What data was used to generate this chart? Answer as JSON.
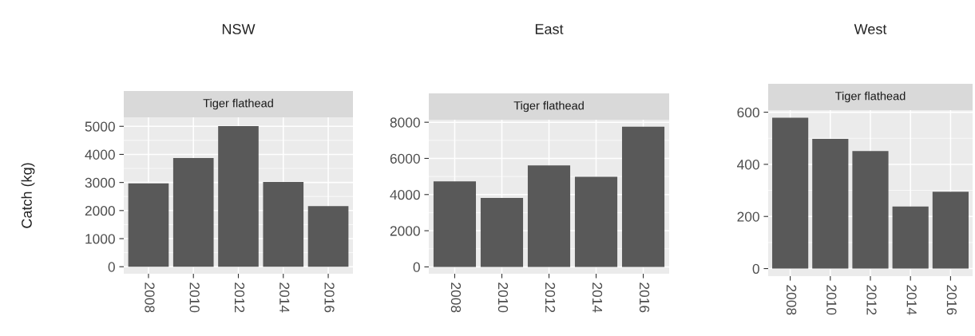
{
  "chart_data": [
    {
      "type": "bar",
      "title": "NSW",
      "subtitle": "Tiger flathead",
      "ylabel": "Catch (kg)",
      "categories": [
        "2008",
        "2010",
        "2012",
        "2014",
        "2016"
      ],
      "values": [
        2970,
        3870,
        5010,
        3020,
        2160
      ],
      "color": "#595959",
      "ylim": [
        -250,
        5320
      ],
      "yticks": [
        0,
        1000,
        2000,
        3000,
        4000,
        5000
      ],
      "grid": true
    },
    {
      "type": "bar",
      "title": "East",
      "subtitle": "Tiger flathead",
      "categories": [
        "2008",
        "2010",
        "2012",
        "2014",
        "2016"
      ],
      "values": [
        4730,
        3810,
        5610,
        4980,
        7750
      ],
      "color": "#595959",
      "ylim": [
        -380,
        8140
      ],
      "yticks": [
        0,
        2000,
        4000,
        6000,
        8000
      ],
      "grid": true
    },
    {
      "type": "bar",
      "title": "West",
      "subtitle": "Tiger flathead",
      "categories": [
        "2008",
        "2010",
        "2012",
        "2014",
        "2016"
      ],
      "values": [
        579,
        498,
        451,
        238,
        295
      ],
      "color": "#595959",
      "ylim": [
        -29,
        608
      ],
      "yticks": [
        0,
        200,
        400,
        600
      ],
      "grid": true
    }
  ]
}
